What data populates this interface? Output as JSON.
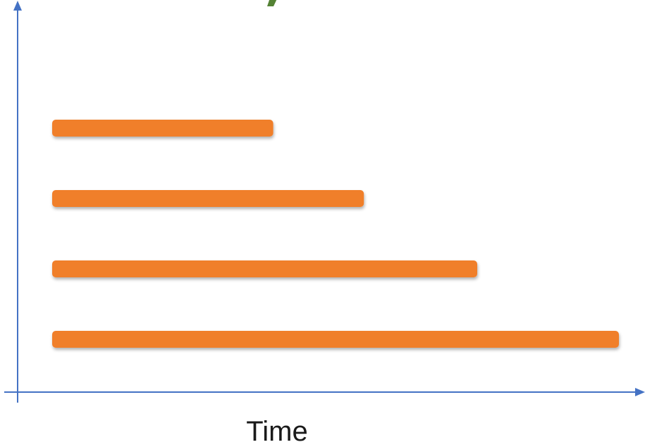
{
  "chart_data": {
    "type": "bar",
    "orientation": "horizontal",
    "xlabel": "Time",
    "ylabel": "",
    "title": "",
    "categories": [
      "",
      "",
      "",
      ""
    ],
    "values": [
      39,
      55,
      75,
      100
    ],
    "xlim": [
      0,
      100
    ],
    "grid": false,
    "colors": {
      "bar": "#f07f2c",
      "axis": "#4472c4",
      "title_fragment": "#548235"
    }
  }
}
